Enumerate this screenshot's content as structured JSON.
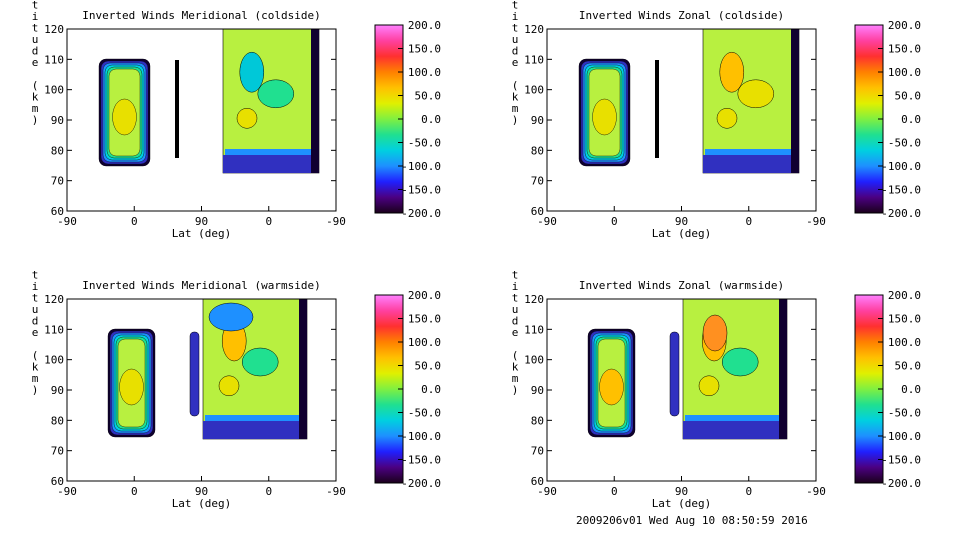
{
  "colors": {
    "colorbar_stops": [
      "#1a001a",
      "#4b0082",
      "#2020ff",
      "#1e90ff",
      "#00d0e0",
      "#20e090",
      "#80f040",
      "#e0f000",
      "#ffc000",
      "#ff8000",
      "#ff3030",
      "#ff40a0",
      "#ff80ff"
    ],
    "wind_fill": "#b8f040",
    "core_fill": "#e8e000",
    "edge_fill": "#3030c0",
    "dark_edge": "#100030"
  },
  "footer": "2009206v01 Wed Aug 10 08:50:59 2016",
  "chart_data": [
    {
      "type": "heatmap",
      "title": "Inverted Winds Meridional (coldside)",
      "xlabel": "Lat (deg)",
      "ylabel": "Altitude (km)",
      "xticks": [
        "-90",
        "0",
        "90",
        "0",
        "-90"
      ],
      "yticks": [
        "60",
        "70",
        "80",
        "90",
        "100",
        "110",
        "120"
      ],
      "ylim": [
        60,
        120
      ],
      "colorbar_ticks": [
        "200.0",
        "150.0",
        "100.0",
        "50.0",
        "0.0",
        "-50.0",
        "-100.0",
        "-150.0",
        "-200.0"
      ],
      "colorbar_range": [
        -200,
        200
      ]
    },
    {
      "type": "heatmap",
      "title": "Inverted Winds Zonal (coldside)",
      "xlabel": "Lat (deg)",
      "ylabel": "Altitude (km)",
      "xticks": [
        "-90",
        "0",
        "90",
        "0",
        "-90"
      ],
      "yticks": [
        "60",
        "70",
        "80",
        "90",
        "100",
        "110",
        "120"
      ],
      "ylim": [
        60,
        120
      ],
      "colorbar_ticks": [
        "200.0",
        "150.0",
        "100.0",
        "50.0",
        "0.0",
        "-50.0",
        "-100.0",
        "-150.0",
        "-200.0"
      ],
      "colorbar_range": [
        -200,
        200
      ]
    },
    {
      "type": "heatmap",
      "title": "Inverted Winds Meridional (warmside)",
      "xlabel": "Lat (deg)",
      "ylabel": "Altitude (km)",
      "xticks": [
        "-90",
        "0",
        "90",
        "0",
        "-90"
      ],
      "yticks": [
        "60",
        "70",
        "80",
        "90",
        "100",
        "110",
        "120"
      ],
      "ylim": [
        60,
        120
      ],
      "colorbar_ticks": [
        "200.0",
        "150.0",
        "100.0",
        "50.0",
        "0.0",
        "-50.0",
        "-100.0",
        "-150.0",
        "-200.0"
      ],
      "colorbar_range": [
        -200,
        200
      ]
    },
    {
      "type": "heatmap",
      "title": "Inverted Winds Zonal (warmside)",
      "xlabel": "Lat (deg)",
      "ylabel": "Altitude (km)",
      "xticks": [
        "-90",
        "0",
        "90",
        "0",
        "-90"
      ],
      "yticks": [
        "60",
        "70",
        "80",
        "90",
        "100",
        "110",
        "120"
      ],
      "ylim": [
        60,
        120
      ],
      "colorbar_ticks": [
        "200.0",
        "150.0",
        "100.0",
        "50.0",
        "0.0",
        "-50.0",
        "-100.0",
        "-150.0",
        "-200.0"
      ],
      "colorbar_range": [
        -200,
        200
      ]
    }
  ]
}
